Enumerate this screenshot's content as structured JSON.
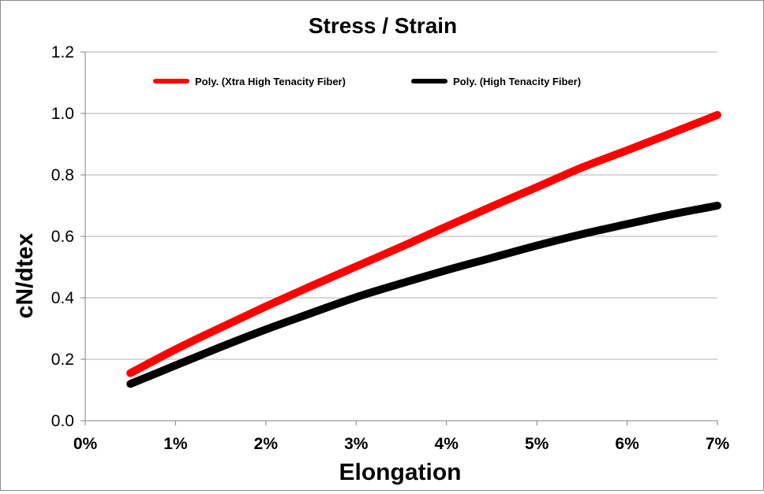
{
  "chart_data": {
    "type": "line",
    "title": "Stress / Strain",
    "xlabel": "Elongation",
    "ylabel": "cN/dtex",
    "xlim": [
      0,
      7
    ],
    "ylim": [
      0,
      1.2
    ],
    "x_ticks": [
      "0%",
      "1%",
      "2%",
      "3%",
      "4%",
      "5%",
      "6%",
      "7%"
    ],
    "y_ticks": [
      "0.0",
      "0.2",
      "0.4",
      "0.6",
      "0.8",
      "1.0",
      "1.2"
    ],
    "grid": "horizontal",
    "legend_position": "top",
    "series": [
      {
        "name": "Poly. (Xtra High Tenacity Fiber)",
        "color": "#ff0000",
        "x": [
          0.5,
          1,
          1.5,
          2,
          2.5,
          3,
          3.5,
          4,
          4.5,
          5,
          5.5,
          6,
          6.5,
          7
        ],
        "values": [
          0.155,
          0.232,
          0.303,
          0.372,
          0.438,
          0.502,
          0.566,
          0.632,
          0.697,
          0.76,
          0.824,
          0.88,
          0.937,
          0.995
        ]
      },
      {
        "name": "Poly. (High Tenacity Fiber)",
        "color": "#000000",
        "x": [
          0.5,
          1,
          1.5,
          2,
          2.5,
          3,
          3.5,
          4,
          4.5,
          5,
          5.5,
          6,
          6.5,
          7
        ],
        "values": [
          0.12,
          0.18,
          0.24,
          0.297,
          0.35,
          0.402,
          0.447,
          0.49,
          0.53,
          0.57,
          0.607,
          0.64,
          0.672,
          0.7
        ]
      }
    ]
  }
}
